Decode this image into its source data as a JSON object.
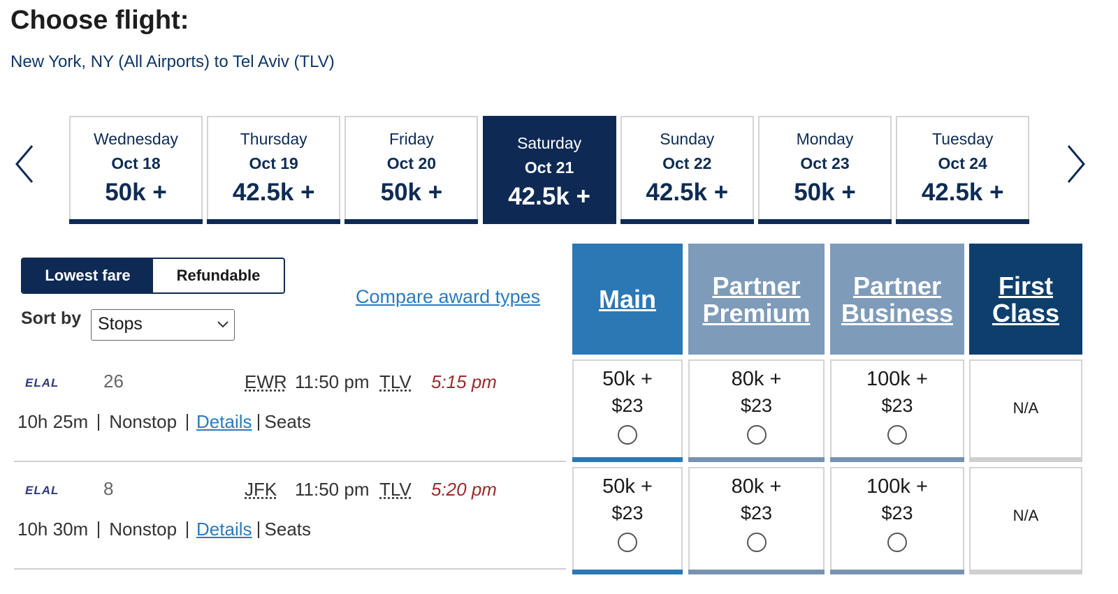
{
  "header": {
    "title": "Choose flight:",
    "route": "New York, NY (All Airports) to Tel Aviv (TLV)"
  },
  "dates": [
    {
      "day": "Wednesday",
      "date": "Oct 18",
      "price": "50k +"
    },
    {
      "day": "Thursday",
      "date": "Oct 19",
      "price": "42.5k +"
    },
    {
      "day": "Friday",
      "date": "Oct 20",
      "price": "50k +"
    },
    {
      "day": "Saturday",
      "date": "Oct 21",
      "price": "42.5k +",
      "selected": true
    },
    {
      "day": "Sunday",
      "date": "Oct 22",
      "price": "42.5k +"
    },
    {
      "day": "Monday",
      "date": "Oct 23",
      "price": "50k +"
    },
    {
      "day": "Tuesday",
      "date": "Oct 24",
      "price": "42.5k +"
    }
  ],
  "fare_toggle": [
    "Lowest fare",
    "Refundable"
  ],
  "sort": {
    "label": "Sort by",
    "value": "Stops"
  },
  "compare_link": "Compare award types",
  "cabins": [
    {
      "name": "Main",
      "color": "#2b78b4",
      "bar": "#2b78b4"
    },
    {
      "name": "Partner Premium",
      "color": "#7e9bb9",
      "bar": "#7893b0"
    },
    {
      "name": "Partner Business",
      "color": "#7e9bb9",
      "bar": "#7893b0"
    },
    {
      "name": "First Class",
      "color": "#0e3f6c",
      "bar": "#cfcfcf"
    }
  ],
  "flights": [
    {
      "logo": "ELAL",
      "number": "26",
      "origin": "EWR",
      "depart": "11:50 pm",
      "destination": "TLV",
      "arrive": "5:15 pm",
      "duration": "10h 25m",
      "stops": "Nonstop",
      "details": "Details",
      "seats": "Seats",
      "fares": [
        {
          "miles": "50k +",
          "tax": "$23"
        },
        {
          "miles": "80k +",
          "tax": "$23"
        },
        {
          "miles": "100k +",
          "tax": "$23"
        },
        {
          "label": "N/A"
        }
      ]
    },
    {
      "logo": "ELAL",
      "number": "8",
      "origin": "JFK",
      "depart": "11:50 pm",
      "destination": "TLV",
      "arrive": "5:20 pm",
      "duration": "10h 30m",
      "stops": "Nonstop",
      "details": "Details",
      "seats": "Seats",
      "fares": [
        {
          "miles": "50k +",
          "tax": "$23"
        },
        {
          "miles": "80k +",
          "tax": "$23"
        },
        {
          "miles": "100k +",
          "tax": "$23"
        },
        {
          "label": "N/A"
        }
      ]
    }
  ]
}
